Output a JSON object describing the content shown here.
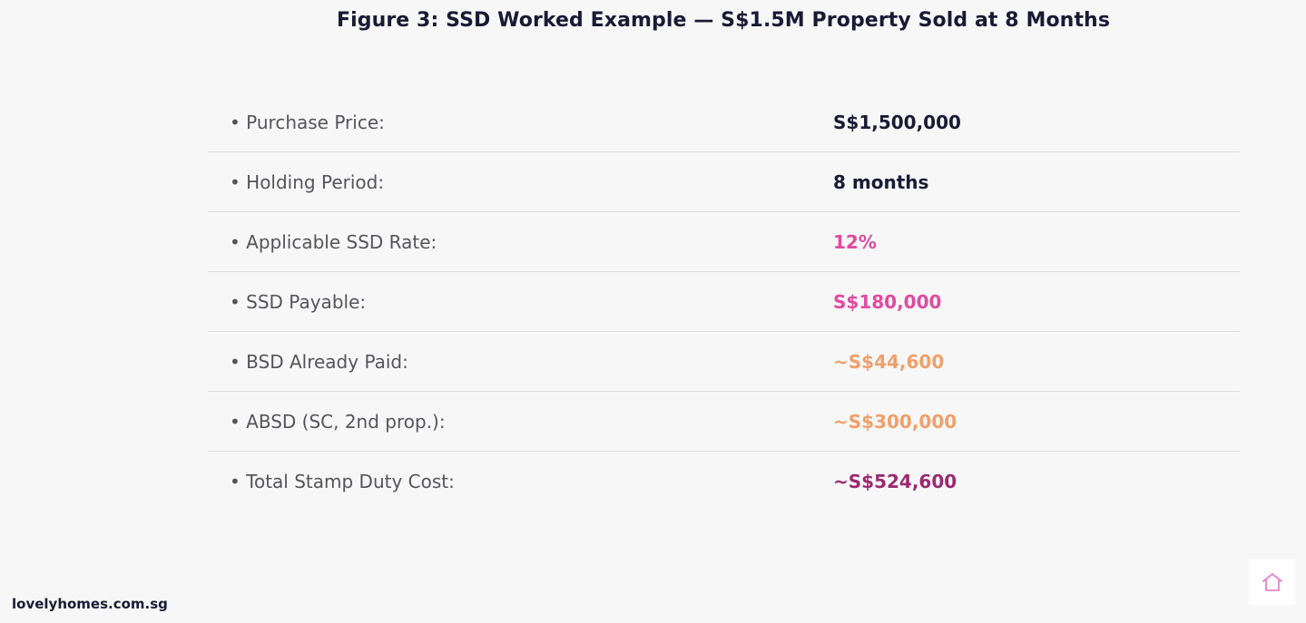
{
  "title": "Figure 3: SSD Worked Example — S$1.5M Property Sold at 8 Months",
  "rows": [
    {
      "label": "• Purchase Price:",
      "value": "S$1,500,000",
      "color": "#1b1a35"
    },
    {
      "label": "• Holding Period:",
      "value": "8 months",
      "color": "#1b1a35"
    },
    {
      "label": "• Applicable SSD Rate:",
      "value": "12%",
      "color": "#e04aa0"
    },
    {
      "label": "• SSD Payable:",
      "value": "S$180,000",
      "color": "#e04aa0"
    },
    {
      "label": "• BSD Already Paid:",
      "value": "~S$44,600",
      "color": "#f0a06a"
    },
    {
      "label": "• ABSD (SC, 2nd prop.):",
      "value": "~S$300,000",
      "color": "#f0a06a"
    },
    {
      "label": "• Total Stamp Duty Cost:",
      "value": "~S$524,600",
      "color": "#9a2a72"
    }
  ],
  "footer": {
    "site": "lovelyhomes.com.sg"
  },
  "home_button": {
    "icon": "home-icon",
    "color": "#e882c8"
  }
}
